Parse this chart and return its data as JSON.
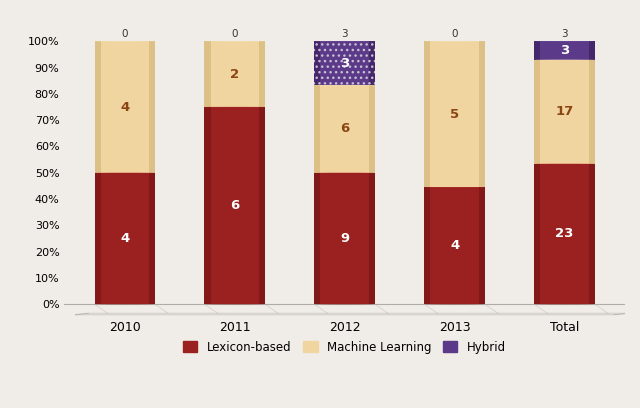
{
  "categories": [
    "2010",
    "2011",
    "2012",
    "2013",
    "Total"
  ],
  "lexicon": [
    4,
    6,
    9,
    4,
    23
  ],
  "ml": [
    4,
    2,
    6,
    5,
    17
  ],
  "hybrid": [
    0,
    0,
    3,
    0,
    3
  ],
  "color_lexicon": "#9B2020",
  "color_ml": "#F0D5A0",
  "color_hybrid": "#5B3A8A",
  "color_hybrid_hatch": "#7A6AAA",
  "color_lexicon_side": "#7A1515",
  "color_ml_side": "#D4B87A",
  "color_hybrid_side": "#3D2060",
  "color_lexicon_top": "#C04040",
  "color_ml_top": "#F8E8C0",
  "color_hybrid_top": "#7B5AAA",
  "background_color": "#F0EDE8",
  "bar_width": 0.55,
  "ellipse_ratio": 0.22,
  "figsize": [
    6.4,
    4.08
  ],
  "dpi": 100,
  "legend_labels": [
    "Lexicon-based",
    "Machine Learning",
    "Hybrid"
  ],
  "floor_color": "#CCCCCC",
  "label_color_lex": "#FFFFFF",
  "label_color_ml": "#8B4513",
  "label_color_hyb": "#FFFFFF"
}
